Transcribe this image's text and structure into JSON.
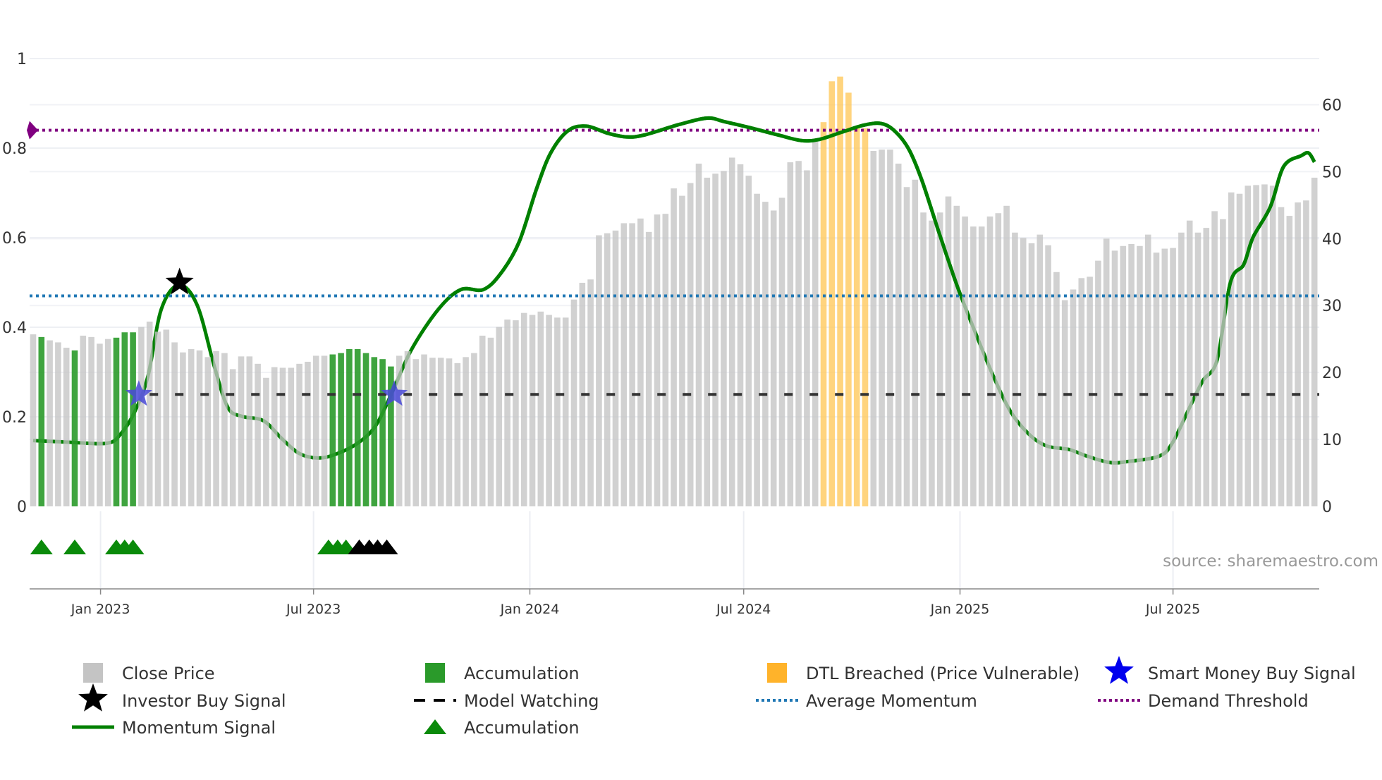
{
  "chart_data": {
    "type": "bar",
    "title": "",
    "source": "source: sharemaestro.com",
    "left_axis": {
      "range": [
        0,
        1
      ],
      "ticks": [
        "0",
        "0.2",
        "0.4",
        "0.6",
        "0.8",
        "1"
      ],
      "tick_values": [
        0,
        0.2,
        0.4,
        0.6,
        0.8,
        1
      ]
    },
    "right_axis": {
      "range": [
        0,
        66.9
      ],
      "ticks": [
        "0",
        "10",
        "20",
        "30",
        "40",
        "50",
        "60"
      ],
      "tick_values": [
        0,
        10,
        20,
        30,
        40,
        50,
        60
      ]
    },
    "x_axis": {
      "unit": "weekly bar index",
      "ticks": [
        {
          "label": "Jan 2023",
          "index": 8.1
        },
        {
          "label": "Jul 2023",
          "index": 33.7
        },
        {
          "label": "Jan 2024",
          "index": 59.7
        },
        {
          "label": "Jul 2024",
          "index": 85.4
        },
        {
          "label": "Jan 2025",
          "index": 111.4
        },
        {
          "label": "Jul 2025",
          "index": 137.0
        }
      ]
    },
    "close_price": [
      25.7,
      25.3,
      24.8,
      24.5,
      23.7,
      23.3,
      25.5,
      25.3,
      24.3,
      25,
      25.2,
      26,
      26,
      26.8,
      27.6,
      26.1,
      26.4,
      24.5,
      23,
      23.5,
      23.3,
      22.3,
      23.2,
      22.9,
      20.5,
      22.4,
      22.4,
      21.3,
      19.2,
      20.8,
      20.7,
      20.7,
      21.3,
      21.6,
      22.5,
      22.5,
      22.7,
      22.9,
      23.5,
      23.5,
      22.9,
      22.3,
      22,
      20.9,
      22.5,
      23.2,
      22,
      22.7,
      22.2,
      22.2,
      22.1,
      21.4,
      22.3,
      22.9,
      25.5,
      25.2,
      26.8,
      27.9,
      27.8,
      28.9,
      28.6,
      29.1,
      28.6,
      28.2,
      28.2,
      30.9,
      33.4,
      33.9,
      40.5,
      40.8,
      41.2,
      42.3,
      42.3,
      43,
      41,
      43.6,
      43.7,
      47.5,
      46.4,
      48.3,
      51.2,
      49.1,
      49.7,
      50.1,
      52.1,
      51.1,
      49.4,
      46.7,
      45.5,
      44.2,
      46.1,
      51.4,
      51.6,
      50.2,
      54.9,
      57.4,
      63.5,
      64.2,
      61.8,
      56.5,
      56.5,
      53.1,
      53.3,
      53.3,
      51.2,
      47.7,
      48.8,
      43.9,
      42.7,
      43.9,
      46.3,
      44.9,
      43.3,
      41.8,
      41.8,
      43.3,
      43.8,
      44.9,
      40.9,
      40.1,
      39.3,
      40.6,
      39,
      35,
      30.8,
      32.4,
      34.1,
      34.3,
      36.7,
      40,
      38.2,
      38.9,
      39.2,
      38.9,
      40.6,
      37.9,
      38.5,
      38.6,
      40.9,
      42.7,
      40.9,
      41.6,
      44.1,
      42.9,
      46.9,
      46.7,
      47.9,
      48,
      48.1,
      47.9,
      44.7,
      43.4,
      45.4,
      45.7,
      49.1
    ],
    "accumulation_bar_indices": [
      1,
      5,
      10,
      11,
      12,
      36,
      37,
      38,
      39,
      40,
      41,
      42,
      43
    ],
    "dtl_breached_indices": [
      95,
      96,
      97,
      98,
      99,
      100
    ],
    "momentum_signal": [
      [
        0,
        0.147
      ],
      [
        4.6,
        0.143
      ],
      [
        8.9,
        0.141
      ],
      [
        10.5,
        0.161
      ],
      [
        12.2,
        0.211
      ],
      [
        13.8,
        0.291
      ],
      [
        15.4,
        0.44
      ],
      [
        17.5,
        0.494
      ],
      [
        19.7,
        0.45
      ],
      [
        21.8,
        0.311
      ],
      [
        23.4,
        0.221
      ],
      [
        25.1,
        0.201
      ],
      [
        27.7,
        0.191
      ],
      [
        29.9,
        0.151
      ],
      [
        32,
        0.118
      ],
      [
        34.2,
        0.108
      ],
      [
        36.3,
        0.116
      ],
      [
        39,
        0.141
      ],
      [
        41.2,
        0.181
      ],
      [
        43.3,
        0.261
      ],
      [
        45.5,
        0.351
      ],
      [
        48.7,
        0.44
      ],
      [
        51.4,
        0.484
      ],
      [
        54.1,
        0.484
      ],
      [
        56.2,
        0.52
      ],
      [
        58.4,
        0.59
      ],
      [
        60.5,
        0.709
      ],
      [
        62.2,
        0.789
      ],
      [
        64.3,
        0.839
      ],
      [
        66.5,
        0.849
      ],
      [
        69.1,
        0.833
      ],
      [
        71.3,
        0.825
      ],
      [
        73.4,
        0.829
      ],
      [
        77.7,
        0.853
      ],
      [
        81,
        0.867
      ],
      [
        83.1,
        0.859
      ],
      [
        86.3,
        0.845
      ],
      [
        89.6,
        0.829
      ],
      [
        92.3,
        0.817
      ],
      [
        94.4,
        0.819
      ],
      [
        97.1,
        0.835
      ],
      [
        99.8,
        0.851
      ],
      [
        101.9,
        0.855
      ],
      [
        103.5,
        0.839
      ],
      [
        105.2,
        0.799
      ],
      [
        106.8,
        0.729
      ],
      [
        108.9,
        0.61
      ],
      [
        111.1,
        0.49
      ],
      [
        113.2,
        0.39
      ],
      [
        115.4,
        0.291
      ],
      [
        117.5,
        0.211
      ],
      [
        119.7,
        0.161
      ],
      [
        121.8,
        0.135
      ],
      [
        124.5,
        0.127
      ],
      [
        126.7,
        0.112
      ],
      [
        129.4,
        0.098
      ],
      [
        131.5,
        0.1
      ],
      [
        135.3,
        0.112
      ],
      [
        136.9,
        0.141
      ],
      [
        139,
        0.221
      ],
      [
        140.6,
        0.281
      ],
      [
        142.3,
        0.327
      ],
      [
        143.9,
        0.5
      ],
      [
        145.5,
        0.54
      ],
      [
        146.6,
        0.6
      ],
      [
        148.7,
        0.669
      ],
      [
        150.3,
        0.759
      ],
      [
        152.4,
        0.783
      ],
      [
        153.3,
        0.789
      ],
      [
        154,
        0.769
      ]
    ],
    "model_watching": 0.25,
    "average_momentum": 0.47,
    "demand_threshold": 0.84,
    "investor_buy_signals": [
      [
        17.6,
        0.5
      ]
    ],
    "smart_money_buy_signals": [
      [
        12.7,
        0.25
      ],
      [
        43.4,
        0.25
      ]
    ],
    "accumulation_markers_green": [
      1,
      5,
      10,
      11,
      12,
      35.5,
      36.6,
      37.6
    ],
    "accumulation_markers_black": [
      39.2,
      40.4,
      41.4,
      42.5
    ],
    "legend": [
      {
        "label": "Close Price",
        "icon": "grey-square"
      },
      {
        "label": "Accumulation",
        "icon": "green-square"
      },
      {
        "label": "DTL Breached (Price Vulnerable)",
        "icon": "orange-square"
      },
      {
        "label": "Smart Money Buy Signal",
        "icon": "blue-star"
      },
      {
        "label": "Investor Buy Signal",
        "icon": "black-star"
      },
      {
        "label": "Model Watching",
        "icon": "black-dash"
      },
      {
        "label": "Average Momentum",
        "icon": "blue-dot-line"
      },
      {
        "label": "Demand Threshold",
        "icon": "purple-dot-line"
      },
      {
        "label": "Momentum Signal",
        "icon": "green-line"
      },
      {
        "label": "Accumulation",
        "icon": "green-triangle"
      }
    ],
    "colors": {
      "price": "#c4c4c4",
      "accumulation": "#2a9a2a",
      "dtl": "#ffc85a",
      "momentum": "#008000",
      "average": "#1f77b4",
      "demand": "#800080",
      "smart_star": "#0000ff",
      "investor_star": "#000000"
    }
  }
}
